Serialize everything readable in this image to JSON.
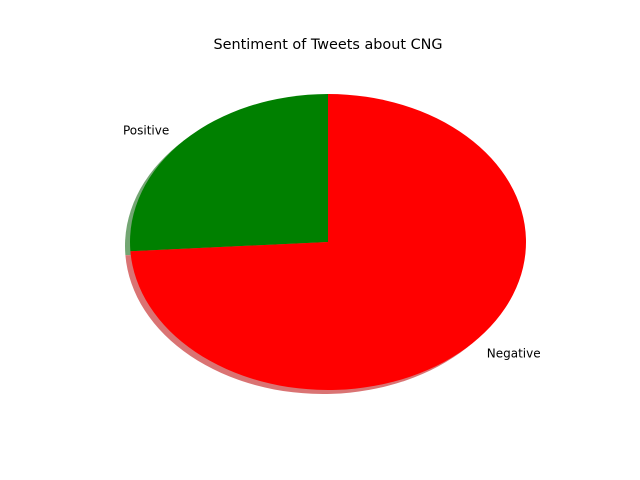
{
  "chart_data": {
    "type": "pie",
    "title": "Sentiment of Tweets about CNG",
    "slices": [
      {
        "label": "Positive",
        "value": 26,
        "color": "#008000"
      },
      {
        "label": "Negative",
        "value": 74,
        "color": "#ff0000"
      }
    ],
    "start_angle_deg": 90,
    "shadow": true,
    "legend": "none"
  }
}
